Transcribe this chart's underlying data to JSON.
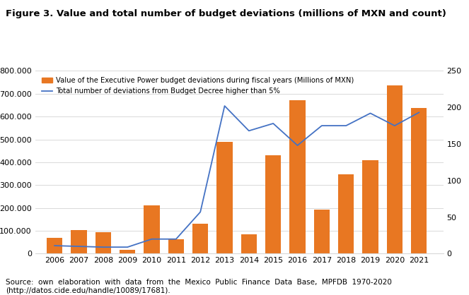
{
  "title": "Figure 3. Value and total number of budget deviations (millions of MXN and count)",
  "years": [
    2006,
    2007,
    2008,
    2009,
    2010,
    2011,
    2012,
    2013,
    2014,
    2015,
    2016,
    2017,
    2018,
    2019,
    2020,
    2021
  ],
  "bar_values": [
    70000,
    103000,
    95000,
    17000,
    210000,
    62000,
    130000,
    490000,
    85000,
    430000,
    672000,
    192000,
    348000,
    408000,
    736000,
    638000
  ],
  "line_values": [
    11,
    10,
    9,
    9,
    20,
    20,
    57,
    202,
    168,
    178,
    148,
    175,
    175,
    192,
    175,
    193
  ],
  "bar_color": "#E87722",
  "line_color": "#4472C4",
  "bar_label": "Value of the Executive Power budget deviations during fiscal years (Millions of MXN)",
  "line_label": "Total number of deviations from Budget Decree higher than 5%",
  "ylim_left": [
    0,
    800000
  ],
  "ylim_right": [
    0,
    250
  ],
  "yticks_left": [
    0,
    100000,
    200000,
    300000,
    400000,
    500000,
    600000,
    700000,
    800000
  ],
  "yticks_right": [
    0,
    50,
    100,
    150,
    200,
    250
  ],
  "source_line1": "Source:  own  elaboration  with  data  from  the  Mexico  Public  Finance  Data  Base,  MPFDB  1970-2020",
  "source_line2": "(http://datos.cide.edu/handle/10089/17681).",
  "background_color": "#ffffff",
  "grid_color": "#d9d9d9"
}
